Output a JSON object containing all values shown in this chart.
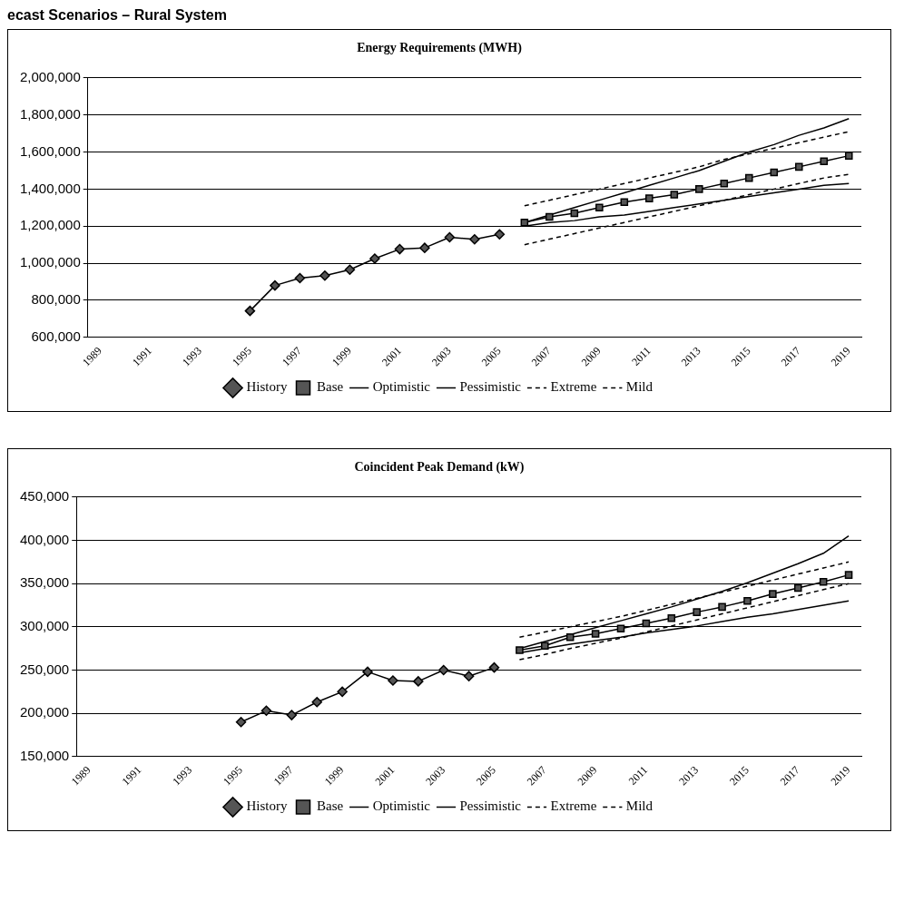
{
  "chart_data": [
    {
      "type": "line",
      "title": "Energy Requirements (MWH)",
      "annotations": [
        "ecast Scenarios – Rural System"
      ],
      "categories": [
        "1989",
        null,
        "1991",
        null,
        "1993",
        null,
        "1995",
        null,
        "1997",
        null,
        "1999",
        null,
        "2001",
        null,
        "2003",
        null,
        "2005",
        null,
        "2007",
        null,
        "2009",
        null,
        "2011",
        null,
        "2013",
        null,
        "2015",
        null,
        "2017",
        null,
        "2019"
      ],
      "ylim": [
        600000,
        2000000
      ],
      "yticks": [
        {
          "value": 600000,
          "label": "600,000"
        },
        {
          "value": 800000,
          "label": "800,000"
        },
        {
          "value": 1000000,
          "label": "1,000,000"
        },
        {
          "value": 1200000,
          "label": "1,200,000"
        },
        {
          "value": 1400000,
          "label": "1,400,000"
        },
        {
          "value": 1600000,
          "label": "1,600,000"
        },
        {
          "value": 1800000,
          "label": "1,800,000"
        },
        {
          "value": 2000000,
          "label": "2,000,000"
        }
      ],
      "grid": "y",
      "legend": "bottom",
      "series": [
        {
          "name": "History",
          "color": "#000000",
          "marker": "diamond",
          "line_style": "solid",
          "values": [
            null,
            null,
            null,
            null,
            null,
            null,
            743000,
            880000,
            920000,
            933000,
            965000,
            1025000,
            1076000,
            1083000,
            1140000,
            1129000,
            1156000,
            null,
            null,
            null,
            null,
            null,
            null,
            null,
            null,
            null,
            null,
            null,
            null,
            null,
            null
          ]
        },
        {
          "name": "Base",
          "color": "#000000",
          "marker": "square",
          "line_style": "solid",
          "values": [
            null,
            null,
            null,
            null,
            null,
            null,
            null,
            null,
            null,
            null,
            null,
            null,
            null,
            null,
            null,
            null,
            null,
            1220000,
            1250000,
            1270000,
            1300000,
            1330000,
            1350000,
            1370000,
            1400000,
            1430000,
            1460000,
            1490000,
            1520000,
            1550000,
            1580000
          ]
        },
        {
          "name": "Optimistic",
          "color": "#000000",
          "marker": "none",
          "line_style": "solid",
          "values": [
            null,
            null,
            null,
            null,
            null,
            null,
            null,
            null,
            null,
            null,
            null,
            null,
            null,
            null,
            null,
            null,
            null,
            1220000,
            1260000,
            1300000,
            1340000,
            1380000,
            1420000,
            1460000,
            1500000,
            1550000,
            1600000,
            1640000,
            1690000,
            1730000,
            1780000
          ]
        },
        {
          "name": "Pessimistic",
          "color": "#000000",
          "marker": "none",
          "line_style": "solid",
          "values": [
            null,
            null,
            null,
            null,
            null,
            null,
            null,
            null,
            null,
            null,
            null,
            null,
            null,
            null,
            null,
            null,
            null,
            1200000,
            1220000,
            1230000,
            1250000,
            1260000,
            1280000,
            1300000,
            1320000,
            1340000,
            1360000,
            1380000,
            1400000,
            1420000,
            1430000
          ]
        },
        {
          "name": "Extreme",
          "color": "#000000",
          "marker": "none",
          "line_style": "dashed",
          "values": [
            null,
            null,
            null,
            null,
            null,
            null,
            null,
            null,
            null,
            null,
            null,
            null,
            null,
            null,
            null,
            null,
            null,
            1310000,
            1340000,
            1370000,
            1400000,
            1430000,
            1460000,
            1490000,
            1520000,
            1560000,
            1590000,
            1620000,
            1650000,
            1680000,
            1710000
          ]
        },
        {
          "name": "Mild",
          "color": "#000000",
          "marker": "none",
          "line_style": "dashed",
          "values": [
            null,
            null,
            null,
            null,
            null,
            null,
            null,
            null,
            null,
            null,
            null,
            null,
            null,
            null,
            null,
            null,
            null,
            1100000,
            1130000,
            1160000,
            1190000,
            1220000,
            1250000,
            1280000,
            1310000,
            1340000,
            1370000,
            1400000,
            1430000,
            1460000,
            1480000
          ]
        }
      ]
    },
    {
      "type": "line",
      "title": "Coincident Peak Demand (kW)",
      "categories": [
        "1989",
        null,
        "1991",
        null,
        "1993",
        null,
        "1995",
        null,
        "1997",
        null,
        "1999",
        null,
        "2001",
        null,
        "2003",
        null,
        "2005",
        null,
        "2007",
        null,
        "2009",
        null,
        "2011",
        null,
        "2013",
        null,
        "2015",
        null,
        "2017",
        null,
        "2019"
      ],
      "ylim": [
        150000,
        450000
      ],
      "yticks": [
        {
          "value": 150000,
          "label": "150,000"
        },
        {
          "value": 200000,
          "label": "200,000"
        },
        {
          "value": 250000,
          "label": "250,000"
        },
        {
          "value": 300000,
          "label": "300,000"
        },
        {
          "value": 350000,
          "label": "350,000"
        },
        {
          "value": 400000,
          "label": "400,000"
        },
        {
          "value": 450000,
          "label": "450,000"
        }
      ],
      "grid": "y",
      "legend": "bottom",
      "series": [
        {
          "name": "History",
          "color": "#000000",
          "marker": "diamond",
          "line_style": "solid",
          "values": [
            null,
            null,
            null,
            null,
            null,
            null,
            190000,
            203000,
            198000,
            213000,
            225000,
            248000,
            238000,
            237000,
            250000,
            243000,
            253000,
            null,
            null,
            null,
            null,
            null,
            null,
            null,
            null,
            null,
            null,
            null,
            null,
            null,
            null
          ]
        },
        {
          "name": "Base",
          "color": "#000000",
          "marker": "square",
          "line_style": "solid",
          "values": [
            null,
            null,
            null,
            null,
            null,
            null,
            null,
            null,
            null,
            null,
            null,
            null,
            null,
            null,
            null,
            null,
            null,
            273000,
            278000,
            288000,
            292000,
            298000,
            304000,
            310000,
            317000,
            323000,
            330000,
            338000,
            345000,
            352000,
            360000
          ]
        },
        {
          "name": "Optimistic",
          "color": "#000000",
          "marker": "none",
          "line_style": "solid",
          "values": [
            null,
            null,
            null,
            null,
            null,
            null,
            null,
            null,
            null,
            null,
            null,
            null,
            null,
            null,
            null,
            null,
            null,
            275000,
            283000,
            291000,
            299000,
            307000,
            315000,
            323000,
            332000,
            341000,
            351000,
            362000,
            373000,
            385000,
            405000
          ]
        },
        {
          "name": "Pessimistic",
          "color": "#000000",
          "marker": "none",
          "line_style": "solid",
          "values": [
            null,
            null,
            null,
            null,
            null,
            null,
            null,
            null,
            null,
            null,
            null,
            null,
            null,
            null,
            null,
            null,
            null,
            270000,
            275000,
            280000,
            284000,
            288000,
            293000,
            297000,
            301000,
            306000,
            311000,
            315000,
            320000,
            325000,
            330000
          ]
        },
        {
          "name": "Extreme",
          "color": "#000000",
          "marker": "none",
          "line_style": "dashed",
          "values": [
            null,
            null,
            null,
            null,
            null,
            null,
            null,
            null,
            null,
            null,
            null,
            null,
            null,
            null,
            null,
            null,
            null,
            288000,
            294000,
            300000,
            306000,
            312000,
            319000,
            326000,
            333000,
            340000,
            347000,
            354000,
            361000,
            368000,
            375000
          ]
        },
        {
          "name": "Mild",
          "color": "#000000",
          "marker": "none",
          "line_style": "dashed",
          "values": [
            null,
            null,
            null,
            null,
            null,
            null,
            null,
            null,
            null,
            null,
            null,
            null,
            null,
            null,
            null,
            null,
            null,
            262000,
            268000,
            275000,
            281000,
            287000,
            294000,
            301000,
            308000,
            315000,
            322000,
            329000,
            336000,
            343000,
            350000
          ]
        }
      ]
    }
  ]
}
